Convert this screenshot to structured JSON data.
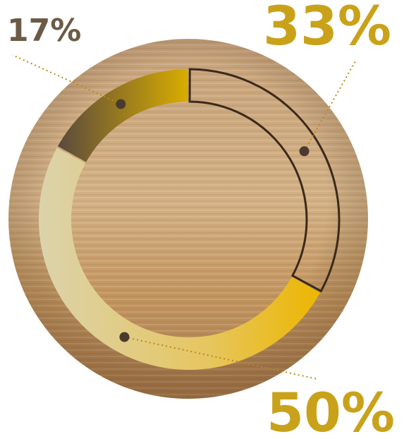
{
  "chart_data": {
    "type": "donut",
    "values": [
      33,
      50,
      17
    ],
    "value_labels": [
      "33%",
      "50%",
      "17%"
    ],
    "colors": [
      "#3b2a1a",
      "#e6b400",
      "#c9a000"
    ],
    "label_colors": [
      "#c9a21a",
      "#c9a21a",
      "#6b5a45"
    ],
    "outlined": [
      true,
      false,
      false
    ]
  }
}
